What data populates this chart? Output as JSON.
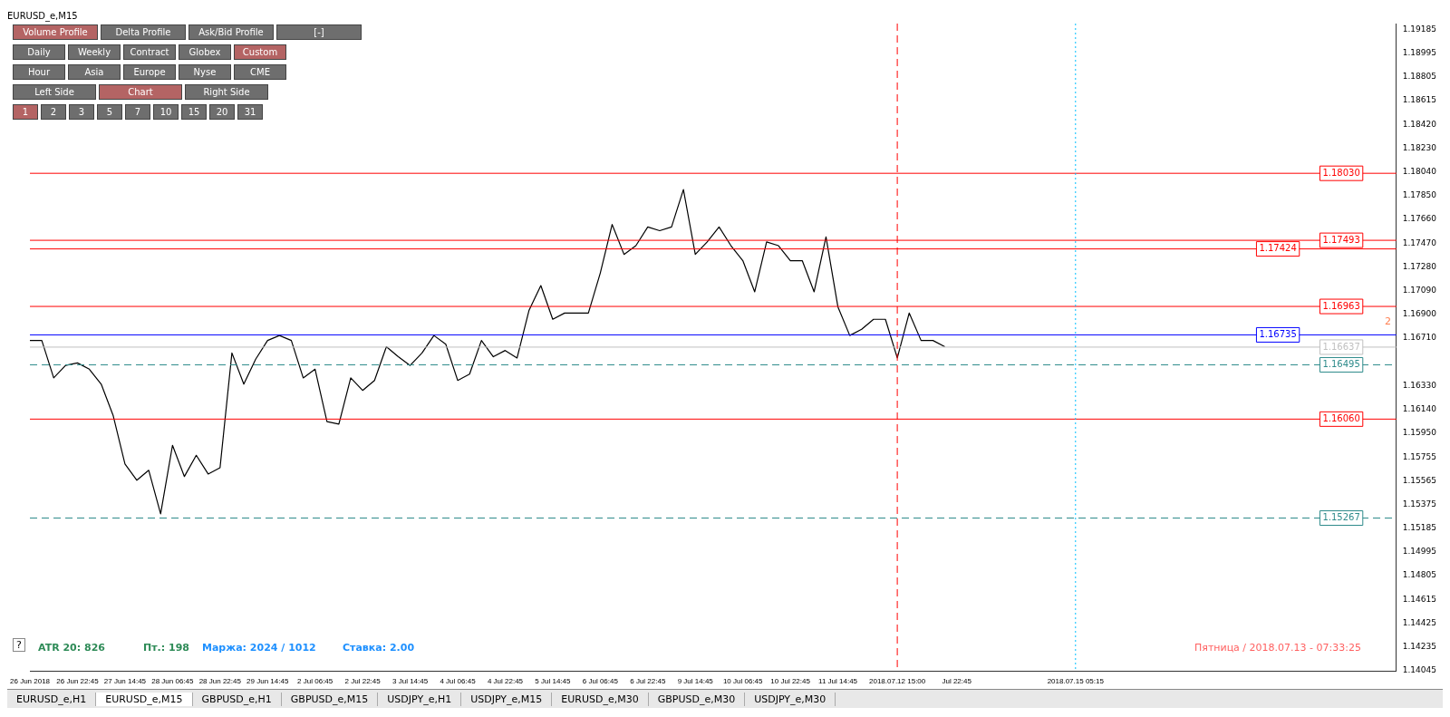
{
  "chart_data": {
    "type": "line",
    "title": "EURUSD_e,M15",
    "categories": [
      "26 Jun 2018",
      null,
      null,
      null,
      "26 Jun 22:45",
      null,
      null,
      null,
      "27 Jun 14:45",
      null,
      null,
      null,
      "28 Jun 06:45",
      null,
      null,
      null,
      "28 Jun 22:45",
      null,
      null,
      null,
      "29 Jun 14:45",
      null,
      null,
      null,
      "2 Jul 06:45",
      null,
      null,
      null,
      "2 Jul 22:45",
      null,
      null,
      null,
      "3 Jul 14:45",
      null,
      null,
      null,
      "4 Jul 06:45",
      null,
      null,
      null,
      "4 Jul 22:45",
      null,
      null,
      null,
      "5 Jul 14:45",
      null,
      null,
      null,
      "6 Jul 06:45",
      null,
      null,
      null,
      "6 Jul 22:45",
      null,
      null,
      null,
      "9 Jul 14:45",
      null,
      null,
      null,
      "10 Jul 06:45",
      null,
      null,
      null,
      "10 Jul 22:45",
      null,
      null,
      null,
      "11 Jul 14:45",
      null,
      null,
      null,
      null,
      "2018.07.12 15:00",
      null,
      null,
      null,
      null,
      "Jul 22:45",
      null,
      null,
      null,
      null,
      null,
      null,
      null,
      null,
      null,
      "2018.07.15 05:15",
      null,
      null,
      null,
      null,
      null,
      null,
      null,
      null,
      null,
      null,
      null,
      null,
      null,
      null,
      null,
      null,
      null,
      null,
      null,
      null,
      null,
      null,
      null,
      null,
      null,
      null,
      null
    ],
    "series": [
      {
        "color": "#000000",
        "values": [
          1.1669,
          1.1669,
          1.1639,
          1.1649,
          1.1651,
          1.1646,
          1.1634,
          1.1609,
          1.157,
          1.1557,
          1.1565,
          1.153,
          1.1585,
          1.156,
          1.1577,
          1.1562,
          1.1567,
          1.1659,
          1.1634,
          1.1654,
          1.1669,
          1.1673,
          1.1669,
          1.1639,
          1.1646,
          1.1604,
          1.1602,
          1.1639,
          1.1629,
          1.1637,
          1.1664,
          1.1656,
          1.1649,
          1.1659,
          1.1673,
          1.1666,
          1.1637,
          1.1642,
          1.1669,
          1.1656,
          1.1661,
          1.1655,
          1.1693,
          1.1713,
          1.1686,
          1.1691,
          1.1691,
          1.1691,
          1.1723,
          1.1762,
          1.1738,
          1.1745,
          1.176,
          1.1757,
          1.176,
          1.179,
          1.1738,
          1.1748,
          1.176,
          1.1745,
          1.1733,
          1.1708,
          1.1748,
          1.1745,
          1.1733,
          1.1733,
          1.1708,
          1.1752,
          1.1696,
          1.1673,
          1.1678,
          1.1686,
          1.1686,
          1.1655,
          1.1691,
          1.1669,
          1.1669,
          1.1664,
          null,
          null,
          null,
          null,
          null,
          null,
          null,
          null,
          null,
          null,
          null,
          null,
          null,
          null,
          null,
          null,
          null,
          null,
          null,
          null,
          null,
          null,
          null,
          null,
          null,
          null,
          null,
          null,
          null,
          null,
          null,
          null,
          null,
          null,
          null,
          null,
          null,
          null
        ]
      }
    ],
    "ylim": [
      1.1404,
      1.1923
    ],
    "yticks": [
      1.19185,
      1.18995,
      1.18805,
      1.18615,
      {
        "value": 1.1842,
        "label": "1.18420"
      },
      {
        "value": 1.1823,
        "label": "1.18230"
      },
      {
        "value": 1.1804,
        "label": "1.18040"
      },
      {
        "value": 1.1785,
        "label": "1.17850"
      },
      {
        "value": 1.1766,
        "label": "1.17660"
      },
      {
        "value": 1.1747,
        "label": "1.17470"
      },
      {
        "value": 1.1728,
        "label": "1.17280"
      },
      {
        "value": 1.1709,
        "label": "1.17090"
      },
      {
        "value": 1.169,
        "label": "1.16900"
      },
      {
        "value": 1.1671,
        "label": "1.16710"
      },
      {
        "value": 1.1633,
        "label": "1.16330"
      },
      {
        "value": 1.1614,
        "label": "1.16140"
      },
      {
        "value": 1.1595,
        "label": "1.15950"
      },
      1.15755,
      1.15565,
      1.15375,
      1.15185,
      1.14995,
      1.14805,
      1.14615,
      1.14425,
      1.14235,
      1.14045
    ],
    "grid": false,
    "legend": false,
    "marker": "none",
    "line_style": "solid",
    "ref_lines": [
      {
        "axis": "y",
        "value": 1.16495,
        "label": "1.16495",
        "color": "#2e8b8b",
        "line_style": "dashed"
      },
      {
        "axis": "y",
        "value": 1.15267,
        "label": "1.15267",
        "color": "#2e8b8b",
        "line_style": "dashed"
      },
      {
        "axis": "y",
        "value": 1.16637,
        "label": "1.16637",
        "color": "#c0c0c0",
        "line_style": "solid"
      },
      {
        "axis": "y",
        "value": 1.1803,
        "label": "1.18030",
        "color": "#ff0000",
        "line_style": "solid"
      },
      {
        "axis": "y",
        "value": 1.17493,
        "label": "1.17493",
        "color": "#ff0000",
        "line_style": "solid"
      },
      {
        "axis": "y",
        "value": 1.17424,
        "label": "1.17424",
        "color": "#ff0000",
        "line_style": "solid"
      },
      {
        "axis": "y",
        "value": 1.16963,
        "label": "1.16963",
        "color": "#ff0000",
        "line_style": "solid"
      },
      {
        "axis": "y",
        "value": 1.16735,
        "label": "1.16735",
        "color": "#0000ff",
        "line_style": "solid"
      },
      {
        "axis": "y",
        "value": 1.1606,
        "label": "1.16060",
        "color": "#ff0000",
        "line_style": "solid"
      },
      {
        "axis": "x",
        "value": "2018.07.12 15:00",
        "color": "#ff0000",
        "line_style": "dashed"
      },
      {
        "axis": "x",
        "value": "2018.07.15 05:15",
        "color": "#00bfff",
        "line_style": "dotted"
      }
    ],
    "annotations": [
      "Volume Profile",
      "Delta Profile",
      "Ask/Bid Profile",
      "[-]",
      "Daily",
      "Weekly",
      "Contract",
      "Globex",
      "Custom",
      "Hour",
      "Asia",
      "Europe",
      "Nyse",
      "CME",
      "Left Side",
      "Chart",
      "Right Side",
      "1",
      "2",
      "3",
      "5",
      "7",
      "10",
      "15",
      "20",
      "31",
      "ATR 20: 826",
      "Пт.: 198",
      "Маржа: 2024 / 1012",
      "Ставка: 2.00",
      "Пятница / 2018.07.13 - 07:33:25",
      "2",
      "?",
      "EURUSD_e,H1",
      "EURUSD_e,M15",
      "GBPUSD_e,H1",
      "GBPUSD_e,M15",
      "USDJPY_e,H1",
      "USDJPY_e,M15",
      "EURUSD_e,M30",
      "GBPUSD_e,M30",
      "USDJPY_e,M30"
    ]
  }
}
